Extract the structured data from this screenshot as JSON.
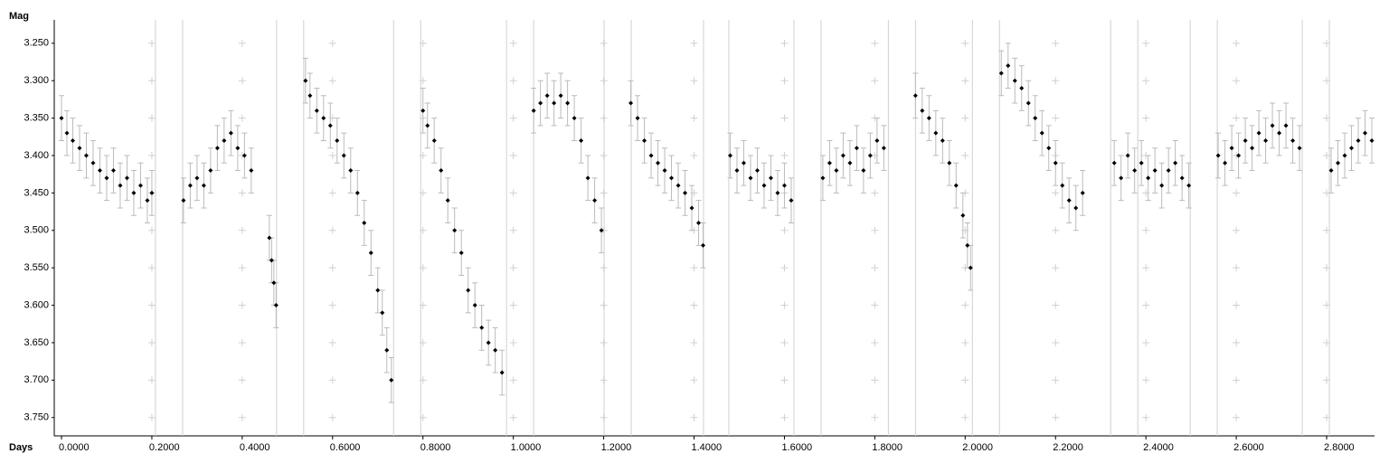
{
  "chart_data": {
    "type": "scatter",
    "y_label": "Mag",
    "x_label": "Days",
    "xlim": [
      -0.016,
      2.906
    ],
    "ylim": [
      3.22,
      3.76
    ],
    "y_inverted": true,
    "xticks": [
      {
        "value": 0,
        "label": "0.0000"
      },
      {
        "value": 0.2,
        "label": "0.2000"
      },
      {
        "value": 0.4,
        "label": "0.4000"
      },
      {
        "value": 0.6,
        "label": "0.6000"
      },
      {
        "value": 0.8,
        "label": "0.8000"
      },
      {
        "value": 1.0,
        "label": "1.0000"
      },
      {
        "value": 1.2,
        "label": "1.2000"
      },
      {
        "value": 1.4,
        "label": "1.4000"
      },
      {
        "value": 1.6,
        "label": "1.6000"
      },
      {
        "value": 1.8,
        "label": "1.8000"
      },
      {
        "value": 2.0,
        "label": "2.0000"
      },
      {
        "value": 2.2,
        "label": "2.2000"
      },
      {
        "value": 2.4,
        "label": "2.4000"
      },
      {
        "value": 2.6,
        "label": "2.6000"
      },
      {
        "value": 2.8,
        "label": "2.8000"
      }
    ],
    "yticks": [
      {
        "value": 3.25,
        "label": "3.250"
      },
      {
        "value": 3.3,
        "label": "3.300"
      },
      {
        "value": 3.35,
        "label": "3.350"
      },
      {
        "value": 3.4,
        "label": "3.400"
      },
      {
        "value": 3.45,
        "label": "3.450"
      },
      {
        "value": 3.5,
        "label": "3.500"
      },
      {
        "value": 3.55,
        "label": "3.550"
      },
      {
        "value": 3.6,
        "label": "3.600"
      },
      {
        "value": 3.65,
        "label": "3.650"
      },
      {
        "value": 3.7,
        "label": "3.700"
      },
      {
        "value": 3.75,
        "label": "3.750"
      }
    ],
    "session_lines": [
      0.208,
      0.268,
      0.476,
      0.536,
      0.735,
      0.795,
      0.985,
      1.045,
      1.201,
      1.261,
      1.421,
      1.477,
      1.621,
      1.681,
      1.83,
      1.89,
      2.016,
      2.076,
      2.322,
      2.382,
      2.498,
      2.558,
      2.746,
      2.806
    ],
    "grid_color": "#d0d0d0",
    "series": [
      {
        "color": "#000000",
        "error_color": "#bbbbbb",
        "error": 0.03,
        "x": [
          0.0,
          0.012,
          0.025,
          0.04,
          0.055,
          0.07,
          0.085,
          0.1,
          0.115,
          0.13,
          0.145,
          0.16,
          0.175,
          0.19,
          0.2,
          0.27,
          0.285,
          0.3,
          0.315,
          0.33,
          0.345,
          0.36,
          0.375,
          0.39,
          0.405,
          0.42,
          0.46,
          0.465,
          0.47,
          0.475,
          0.54,
          0.55,
          0.565,
          0.58,
          0.595,
          0.61,
          0.625,
          0.64,
          0.655,
          0.67,
          0.685,
          0.7,
          0.71,
          0.72,
          0.73,
          0.8,
          0.81,
          0.825,
          0.84,
          0.855,
          0.87,
          0.885,
          0.9,
          0.915,
          0.93,
          0.945,
          0.96,
          0.975,
          1.045,
          1.06,
          1.075,
          1.09,
          1.105,
          1.12,
          1.135,
          1.15,
          1.165,
          1.18,
          1.195,
          1.26,
          1.275,
          1.29,
          1.305,
          1.32,
          1.335,
          1.35,
          1.365,
          1.38,
          1.395,
          1.41,
          1.42,
          1.48,
          1.495,
          1.51,
          1.525,
          1.54,
          1.555,
          1.57,
          1.585,
          1.6,
          1.615,
          1.685,
          1.7,
          1.715,
          1.73,
          1.745,
          1.76,
          1.775,
          1.79,
          1.805,
          1.82,
          1.89,
          1.905,
          1.92,
          1.935,
          1.95,
          1.965,
          1.98,
          1.995,
          2.005,
          2.012,
          2.08,
          2.095,
          2.11,
          2.125,
          2.14,
          2.155,
          2.17,
          2.185,
          2.2,
          2.215,
          2.23,
          2.245,
          2.26,
          2.33,
          2.345,
          2.36,
          2.375,
          2.39,
          2.405,
          2.42,
          2.435,
          2.45,
          2.465,
          2.48,
          2.495,
          2.56,
          2.575,
          2.59,
          2.605,
          2.62,
          2.635,
          2.65,
          2.665,
          2.68,
          2.695,
          2.71,
          2.725,
          2.74,
          2.81,
          2.825,
          2.84,
          2.855,
          2.87,
          2.885,
          2.9
        ],
        "values": [
          3.35,
          3.37,
          3.38,
          3.39,
          3.4,
          3.41,
          3.42,
          3.43,
          3.42,
          3.44,
          3.43,
          3.45,
          3.44,
          3.46,
          3.45,
          3.46,
          3.44,
          3.43,
          3.44,
          3.42,
          3.39,
          3.38,
          3.37,
          3.39,
          3.4,
          3.42,
          3.51,
          3.54,
          3.57,
          3.6,
          3.3,
          3.32,
          3.34,
          3.35,
          3.36,
          3.38,
          3.4,
          3.42,
          3.45,
          3.49,
          3.53,
          3.58,
          3.61,
          3.66,
          3.7,
          3.34,
          3.36,
          3.38,
          3.42,
          3.46,
          3.5,
          3.53,
          3.58,
          3.6,
          3.63,
          3.65,
          3.66,
          3.69,
          3.34,
          3.33,
          3.32,
          3.33,
          3.32,
          3.33,
          3.35,
          3.38,
          3.43,
          3.46,
          3.5,
          3.33,
          3.35,
          3.38,
          3.4,
          3.41,
          3.42,
          3.43,
          3.44,
          3.45,
          3.47,
          3.49,
          3.52,
          3.4,
          3.42,
          3.41,
          3.43,
          3.42,
          3.44,
          3.43,
          3.45,
          3.44,
          3.46,
          3.43,
          3.41,
          3.42,
          3.4,
          3.41,
          3.39,
          3.42,
          3.4,
          3.38,
          3.39,
          3.32,
          3.34,
          3.35,
          3.37,
          3.38,
          3.41,
          3.44,
          3.48,
          3.52,
          3.55,
          3.29,
          3.28,
          3.3,
          3.31,
          3.33,
          3.35,
          3.37,
          3.39,
          3.41,
          3.44,
          3.46,
          3.47,
          3.45,
          3.41,
          3.43,
          3.4,
          3.42,
          3.41,
          3.43,
          3.42,
          3.44,
          3.42,
          3.41,
          3.43,
          3.44,
          3.4,
          3.41,
          3.39,
          3.4,
          3.38,
          3.39,
          3.37,
          3.38,
          3.36,
          3.37,
          3.36,
          3.38,
          3.39,
          3.42,
          3.41,
          3.4,
          3.39,
          3.38,
          3.37,
          3.38
        ]
      }
    ]
  }
}
